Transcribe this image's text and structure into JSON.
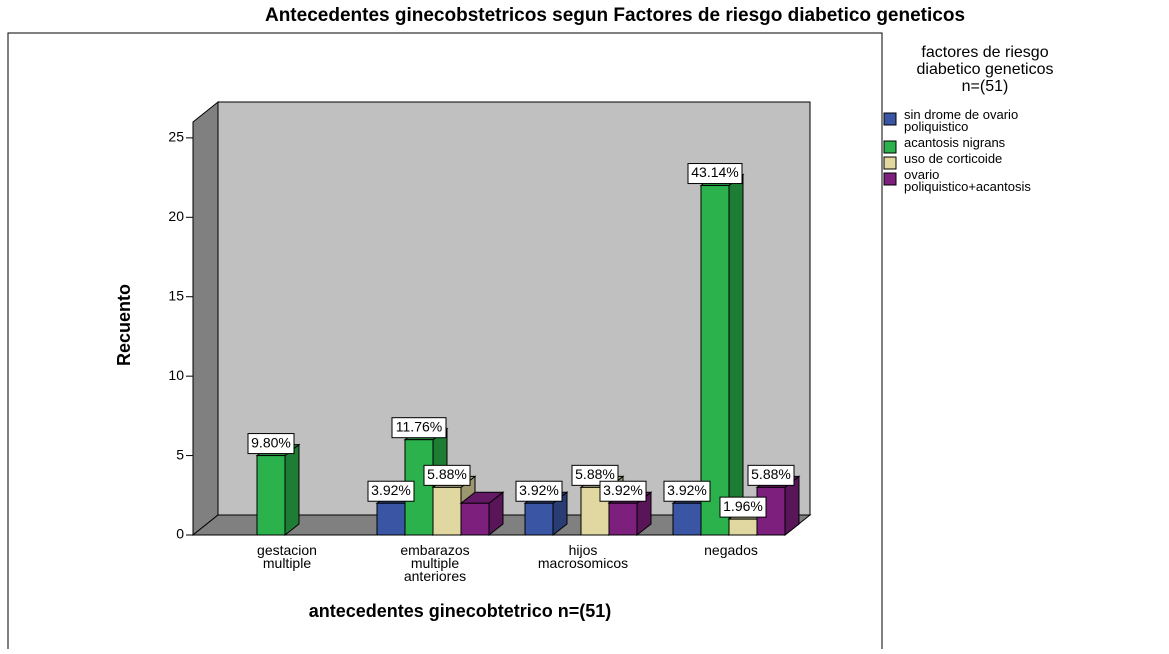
{
  "chart_data": {
    "type": "bar3d",
    "title": "Antecedentes ginecobstetricos segun Factores de riesgo diabetico geneticos",
    "x_label": "antecedentes  ginecobtetrico  n=(51)",
    "y_label": "Recuento",
    "legend_title": [
      "factores de riesgo",
      "diabetico geneticos",
      "n=(51)"
    ],
    "categories": [
      "gestacion multiple",
      "embarazos multiple anteriores",
      "hijos macrosomicos",
      "negados"
    ],
    "series": [
      {
        "name": "sin drome de ovario poliquistico",
        "color": "#3a55a4",
        "values": [
          null,
          2,
          2,
          2
        ],
        "value_labels": [
          null,
          "3.92%",
          "3.92%",
          "3.92%"
        ]
      },
      {
        "name": "acantosis nigrans",
        "color": "#2bb24c",
        "values": [
          5,
          6,
          null,
          22
        ],
        "value_labels": [
          "9.80%",
          "11.76%",
          null,
          "43.14%"
        ]
      },
      {
        "name": "uso de corticoide",
        "color": "#e0d8a0",
        "values": [
          null,
          3,
          3,
          1
        ],
        "value_labels": [
          null,
          "5.88%",
          "5.88%",
          "1.96%"
        ]
      },
      {
        "name": "ovario poliquistico+acantosis",
        "color": "#7d1f7d",
        "values": [
          null,
          2,
          2,
          3
        ],
        "value_labels": [
          null,
          null,
          "3.92%",
          "5.88%"
        ]
      }
    ],
    "ylim": [
      0,
      26
    ],
    "yticks": [
      0,
      5,
      10,
      15,
      20,
      25
    ],
    "legend": "right"
  }
}
